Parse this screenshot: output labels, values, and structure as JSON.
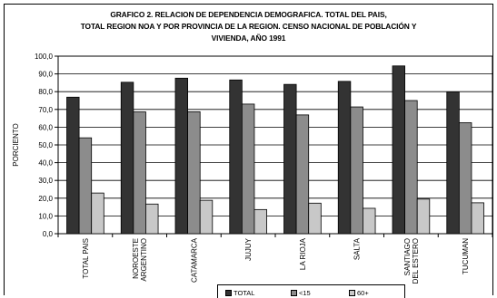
{
  "chart_data": {
    "type": "bar",
    "title_lines": [
      "GRAFICO 2. RELACION DE DEPENDENCIA DEMOGRAFICA. TOTAL DEL PAIS,",
      "TOTAL REGION NOA Y POR PROVINCIA DE LA REGION. CENSO NACIONAL DE POBLACIÓN Y",
      "VIVIENDA, AÑO 1991"
    ],
    "ylabel": "PORCIENTO",
    "ylim": [
      0,
      100
    ],
    "yticks": [
      "0,0",
      "10,0",
      "20,0",
      "30,0",
      "40,0",
      "50,0",
      "60,0",
      "70,0",
      "80,0",
      "90,0",
      "100,0"
    ],
    "grid": true,
    "categories": [
      [
        "TOTAL PAIS"
      ],
      [
        "NOROESTE",
        "ARGENTINO"
      ],
      [
        "CATAMARCA"
      ],
      [
        "JUJUY"
      ],
      [
        "LA RIOJA"
      ],
      [
        "SALTA"
      ],
      [
        "SANTIAGO",
        "DEL ESTERO"
      ],
      [
        "TUCUMAN"
      ]
    ],
    "series": [
      {
        "name": "TOTAL",
        "color": "#333333",
        "values": [
          76.9,
          85.3,
          87.6,
          86.6,
          84.1,
          85.8,
          94.5,
          79.9
        ]
      },
      {
        "name": "<15",
        "color": "#8c8c8c",
        "values": [
          54.0,
          68.6,
          68.7,
          73.0,
          66.9,
          71.4,
          75.0,
          62.5
        ]
      },
      {
        "name": "60+",
        "color": "#c8c8c8",
        "values": [
          22.9,
          16.7,
          18.8,
          13.6,
          17.2,
          14.3,
          19.5,
          17.4
        ]
      }
    ],
    "legend_position": "bottom"
  }
}
